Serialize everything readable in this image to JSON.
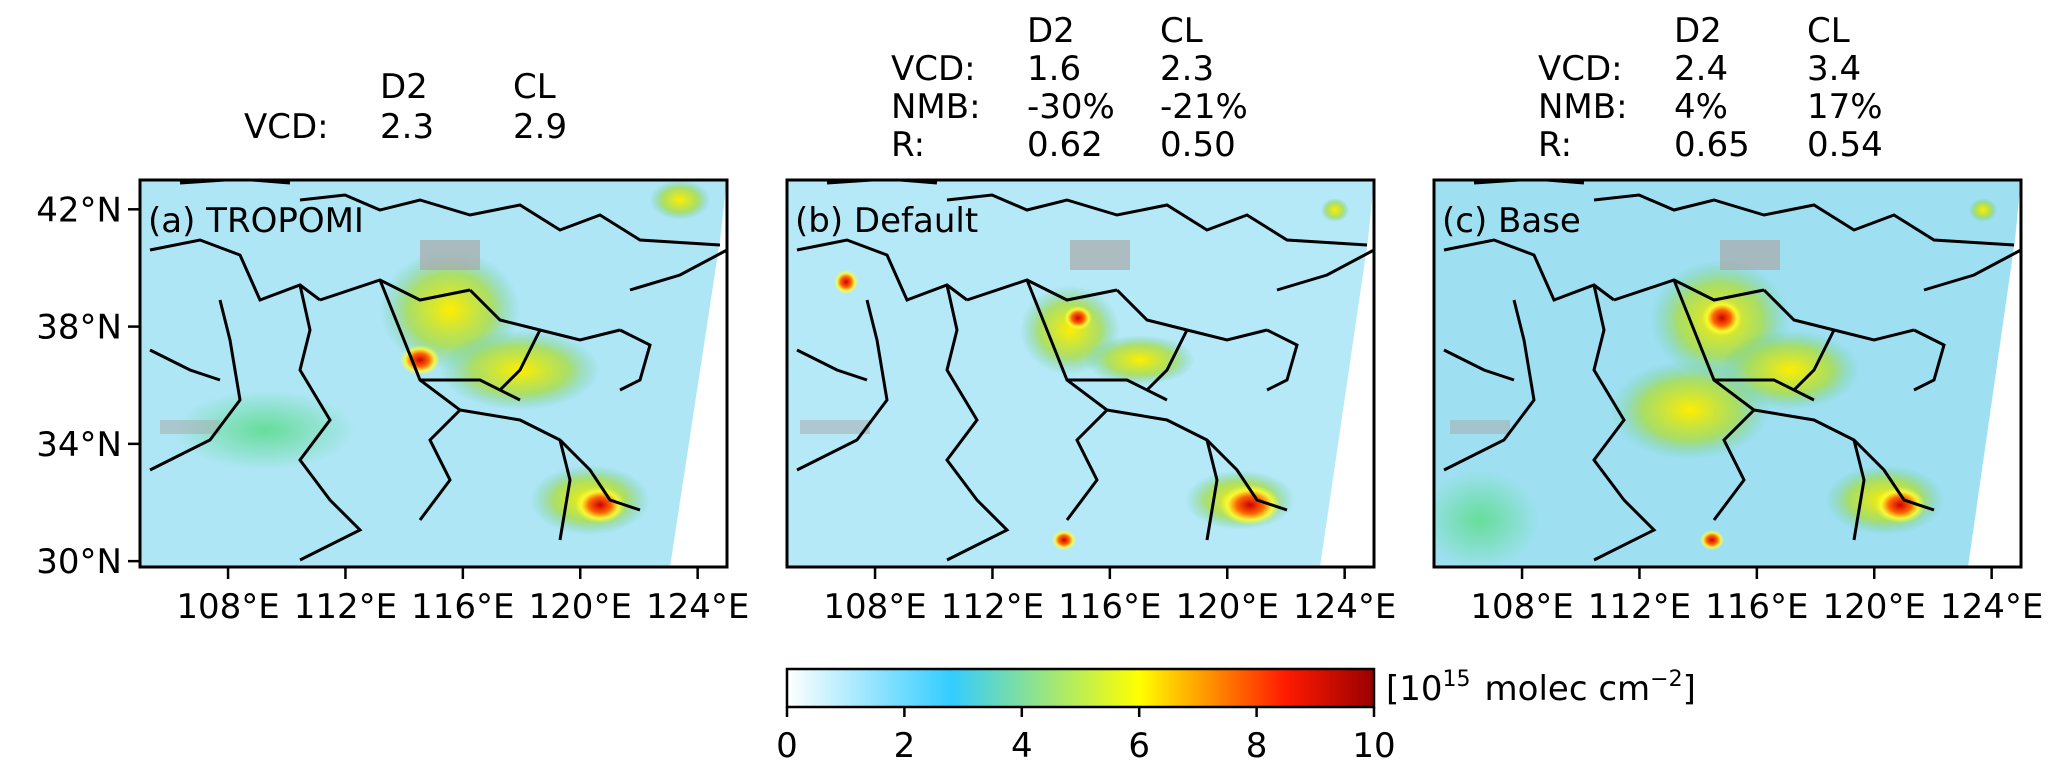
{
  "figure": {
    "panels": [
      {
        "label": "(a) TROPOMI",
        "stats_header": [
          "D2",
          "CL"
        ],
        "stats": [
          {
            "name": "VCD:",
            "d2": "2.3",
            "cl": "2.9"
          }
        ],
        "show_lat_axis": true
      },
      {
        "label": "(b) Default",
        "stats_header": [
          "D2",
          "CL"
        ],
        "stats": [
          {
            "name": "VCD:",
            "d2": "1.6",
            "cl": "2.3"
          },
          {
            "name": "NMB:",
            "d2": "-30%",
            "cl": "-21%"
          },
          {
            "name": "R:",
            "d2": "0.62",
            "cl": "0.50"
          }
        ],
        "show_lat_axis": false
      },
      {
        "label": "(c) Base",
        "stats_header": [
          "D2",
          "CL"
        ],
        "stats": [
          {
            "name": "VCD:",
            "d2": "2.4",
            "cl": "3.4"
          },
          {
            "name": "NMB:",
            "d2": "4%",
            "cl": "17%"
          },
          {
            "name": "R:",
            "d2": "0.65",
            "cl": "0.54"
          }
        ],
        "show_lat_axis": false
      }
    ],
    "lat_ticks": [
      {
        "value": 42,
        "label": "42°N"
      },
      {
        "value": 38,
        "label": "38°N"
      },
      {
        "value": 34,
        "label": "34°N"
      },
      {
        "value": 30,
        "label": "30°N"
      }
    ],
    "lon_ticks": [
      {
        "value": 108,
        "label": "108°E"
      },
      {
        "value": 112,
        "label": "112°E"
      },
      {
        "value": 116,
        "label": "116°E"
      },
      {
        "value": 120,
        "label": "120°E"
      },
      {
        "value": 124,
        "label": "124°E"
      }
    ],
    "colorbar": {
      "min": 0,
      "max": 10,
      "ticks": [
        "0",
        "2",
        "4",
        "6",
        "8",
        "10"
      ],
      "unit_open": "[10",
      "unit_exp": "15",
      "unit_mid": "molec cm",
      "unit_exp2": "−2",
      "unit_close": "]",
      "colors": [
        "#ffffff",
        "#33ccff",
        "#ffff00",
        "#ff0000",
        "#990000"
      ]
    }
  }
}
